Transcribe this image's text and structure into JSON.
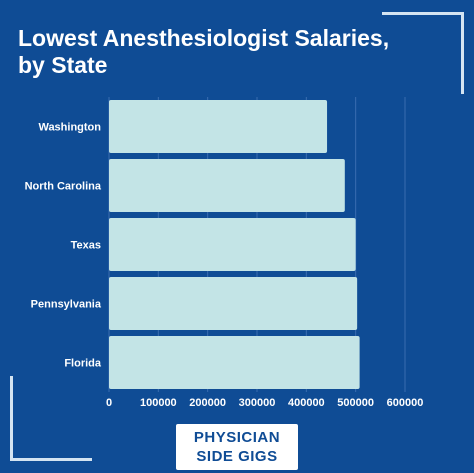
{
  "title": "Lowest Anesthesiologist Salaries, by State",
  "brand": {
    "line1": "PHYSICIAN",
    "line2": "SIDE GIGS"
  },
  "colors": {
    "background": "#0f4c95",
    "bar": "#c3e4e6",
    "grid": "#3a6db0",
    "text": "#ffffff",
    "accent": "#d4e4f2"
  },
  "chart_data": {
    "type": "bar",
    "orientation": "horizontal",
    "categories": [
      "Washington",
      "North Carolina",
      "Texas",
      "Pennsylvania",
      "Florida"
    ],
    "values": [
      442000,
      478000,
      500000,
      503000,
      508000
    ],
    "xlim": [
      0,
      600000
    ],
    "xticks": [
      0,
      100000,
      200000,
      300000,
      400000,
      500000,
      600000
    ],
    "xtick_labels": [
      "0",
      "100000",
      "200000",
      "300000",
      "400000",
      "500000",
      "600000"
    ],
    "grid": true,
    "legend": "none"
  }
}
